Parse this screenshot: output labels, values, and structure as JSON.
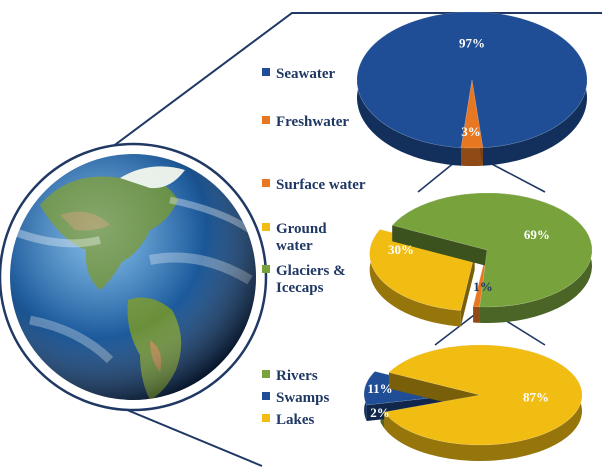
{
  "chart_data": [
    {
      "type": "pie",
      "title": "",
      "slices": [
        {
          "label": "Seawater",
          "value": 97,
          "value_label": "97%",
          "color": "#1f4e96"
        },
        {
          "label": "Freshwater",
          "value": 3,
          "value_label": "3%",
          "color": "#e87722"
        }
      ]
    },
    {
      "type": "pie",
      "title": "",
      "slices": [
        {
          "label": "Surface water",
          "value": 1,
          "value_label": "1%",
          "color": "#e87722"
        },
        {
          "label": "Ground water",
          "value": 30,
          "value_label": "30%",
          "color": "#f2bd12"
        },
        {
          "label": "Glaciers & Icecaps",
          "value": 69,
          "value_label": "69%",
          "color": "#78a33c"
        }
      ]
    },
    {
      "type": "pie",
      "title": "",
      "slices": [
        {
          "label": "Rivers",
          "value": 2,
          "value_label": "2%",
          "color": "#78a33c"
        },
        {
          "label": "Swamps",
          "value": 11,
          "value_label": "11%",
          "color": "#1f4e96"
        },
        {
          "label": "Lakes",
          "value": 87,
          "value_label": "87%",
          "color": "#f2bd12"
        }
      ]
    }
  ],
  "legends": {
    "seawater": "Seawater",
    "freshwater": "Freshwater",
    "surface_water": "Surface water",
    "ground_water_1": "Ground",
    "ground_water_2": "water",
    "glaciers_1": "Glaciers &",
    "glaciers_2": "Icecaps",
    "rivers": "Rivers",
    "swamps": "Swamps",
    "lakes": "Lakes"
  },
  "globe_icon": "earth-globe-icon"
}
